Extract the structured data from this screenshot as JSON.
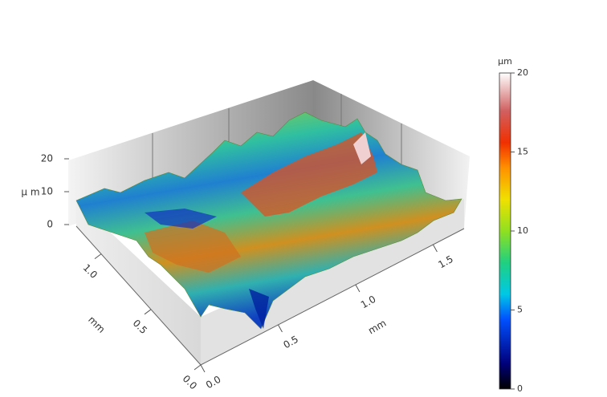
{
  "chart_data": {
    "type": "surface3d",
    "x_label": "mm",
    "y_label": "mm",
    "z_label": "µ m",
    "xlim": [
      0,
      1.7
    ],
    "xticks": [
      {
        "value": 0,
        "label": "0.0"
      },
      {
        "value": 0.5,
        "label": "0.5"
      },
      {
        "value": 1,
        "label": "1.0"
      },
      {
        "value": 1.5,
        "label": "1.5"
      }
    ],
    "ylim": [
      0,
      1.25
    ],
    "yticks": [
      {
        "value": 0,
        "label": "0.0"
      },
      {
        "value": 0.5,
        "label": "0.5"
      },
      {
        "value": 1,
        "label": "1.0"
      }
    ],
    "zlim": [
      0,
      20
    ],
    "zticks": [
      0,
      10,
      20
    ],
    "colorbar": {
      "label": "µm",
      "lim": [
        0,
        20
      ],
      "ticks": [
        0,
        5,
        10,
        15,
        20
      ]
    }
  }
}
